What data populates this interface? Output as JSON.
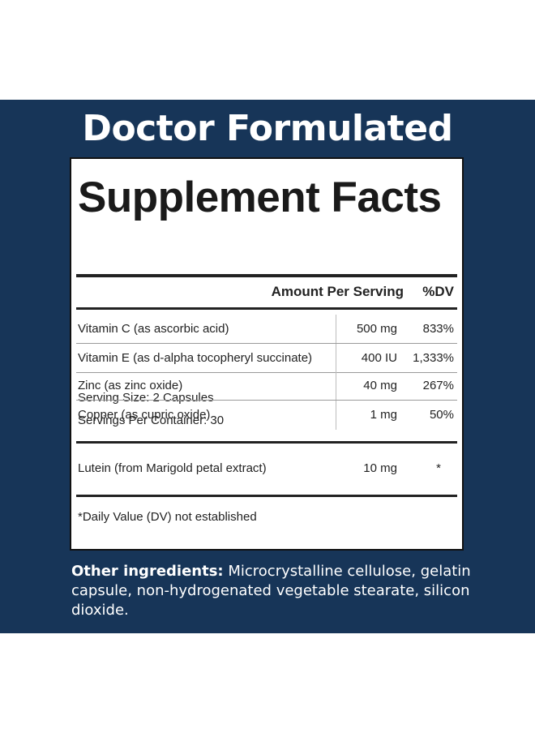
{
  "headline": "Doctor Formulated",
  "panel": {
    "title": "Supplement Facts",
    "serving_size": "Serving Size: 2 Capsules",
    "servings_per_container": "Servings Per Container: 30",
    "header_amount": "Amount Per Serving",
    "header_dv": "%DV",
    "rows": [
      {
        "name": "Vitamin C (as ascorbic acid)",
        "amount": "500 mg",
        "dv": "833%"
      },
      {
        "name": "Vitamin E (as d-alpha tocopheryl succinate)",
        "amount": "400 IU",
        "dv": "1,333%"
      },
      {
        "name": "Zinc (as zinc oxide)",
        "amount": "40 mg",
        "dv": "267%"
      },
      {
        "name": "Copper (as cupric oxide)",
        "amount": "1 mg",
        "dv": "50%"
      }
    ],
    "extra_row": {
      "name": "Lutein (from Marigold petal extract)",
      "amount": "10 mg",
      "dv": "*"
    },
    "footnote": "*Daily Value (DV) not established"
  },
  "other_ingredients": {
    "label": "Other ingredients:",
    "text": " Microcrystalline cellulose, gelatin capsule, non-hydrogenated vegetable stearate, silicon dioxide."
  },
  "colors": {
    "band": "#173558",
    "text_light": "#ffffff",
    "panel_border": "#111111"
  }
}
